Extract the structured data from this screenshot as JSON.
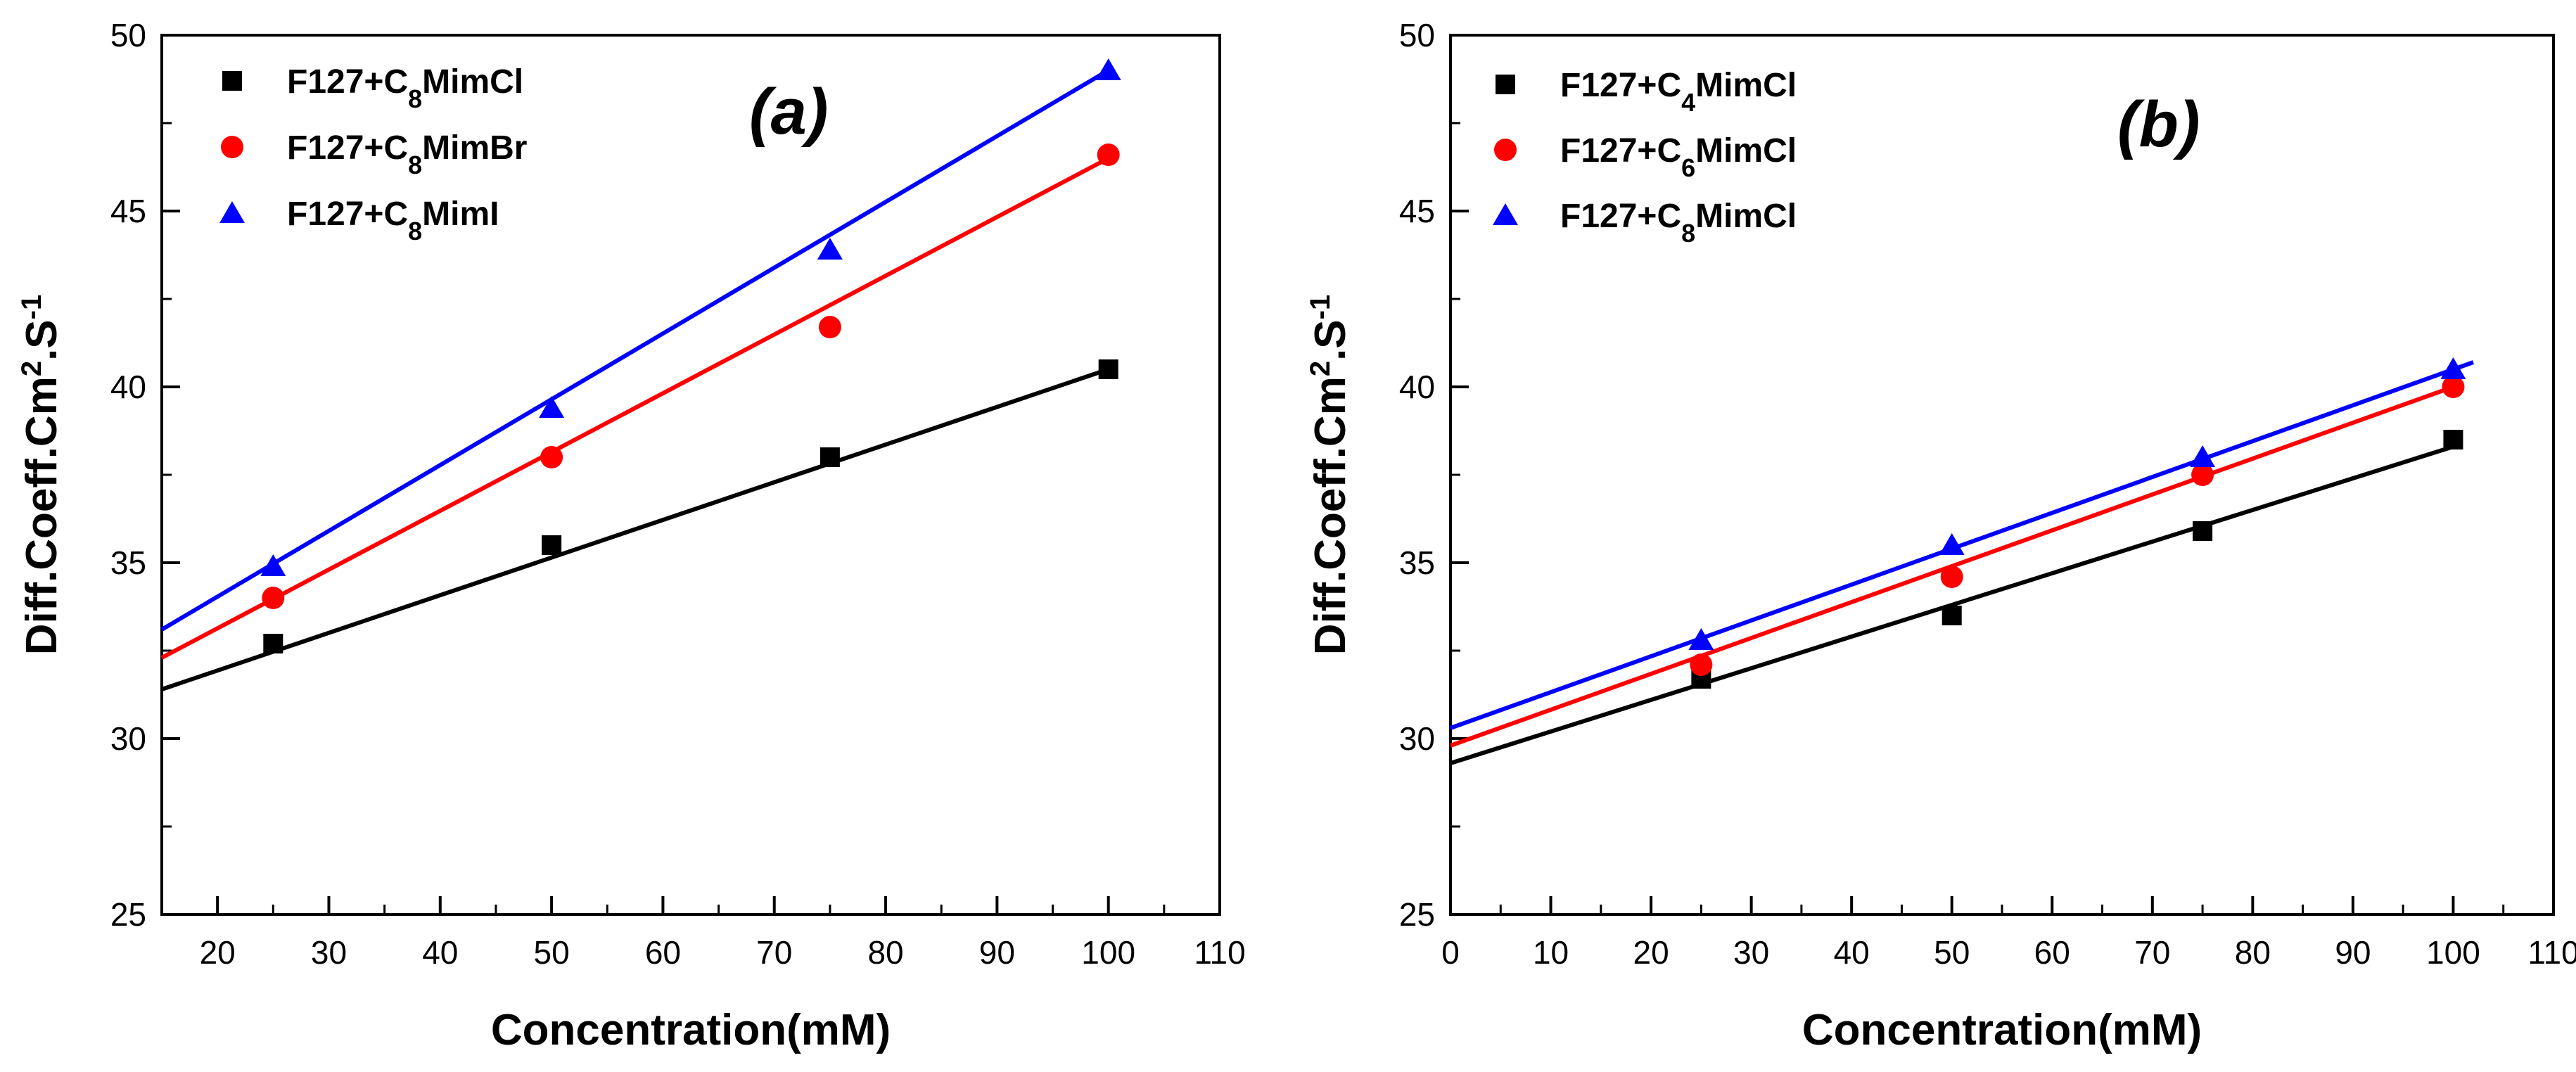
{
  "chart_data": [
    {
      "type": "scatter",
      "panel": "(a)",
      "xlabel": "Concentration(mM)",
      "ylabel": {
        "base": "Diff.Coeff.Cm",
        "sup1": "2",
        "mid": ".S",
        "sup2": "-1"
      },
      "xlim": [
        15,
        110
      ],
      "ylim": [
        25,
        50
      ],
      "xticks": [
        20,
        30,
        40,
        50,
        60,
        70,
        80,
        90,
        100,
        110
      ],
      "yticks": [
        25,
        30,
        35,
        40,
        45,
        50
      ],
      "grid": false,
      "legend_position": "top-left",
      "series": [
        {
          "name": "F127+C8MimCl",
          "label": {
            "pre": "F127+C",
            "sub": "8",
            "post": "MimCl"
          },
          "color": "#000000",
          "marker": "square",
          "x": [
            25,
            50,
            75,
            100
          ],
          "y": [
            32.7,
            35.5,
            38.0,
            40.5
          ],
          "fit": {
            "x": [
              15,
              100
            ],
            "y": [
              31.4,
              40.5
            ]
          }
        },
        {
          "name": "F127+C8MimBr",
          "label": {
            "pre": "F127+C",
            "sub": "8",
            "post": "MimBr"
          },
          "color": "#ff0000",
          "marker": "circle",
          "x": [
            25,
            50,
            75,
            100
          ],
          "y": [
            34.0,
            38.0,
            41.7,
            46.6
          ],
          "fit": {
            "x": [
              15,
              100
            ],
            "y": [
              32.3,
              46.5
            ]
          }
        },
        {
          "name": "F127+C8MimI",
          "label": {
            "pre": "F127+C",
            "sub": "8",
            "post": "MimI"
          },
          "color": "#0000ff",
          "marker": "triangle",
          "x": [
            25,
            50,
            75,
            100
          ],
          "y": [
            34.9,
            39.4,
            43.9,
            49.0
          ],
          "fit": {
            "x": [
              15,
              100
            ],
            "y": [
              33.1,
              49.0
            ]
          }
        }
      ]
    },
    {
      "type": "scatter",
      "panel": "(b)",
      "xlabel": "Concentration(mM)",
      "ylabel": {
        "base": "Diff.Coeff.Cm",
        "sup1": "2",
        "mid": ".S",
        "sup2": "-1"
      },
      "xlim": [
        0,
        110
      ],
      "ylim": [
        25,
        50
      ],
      "xticks": [
        0,
        10,
        20,
        30,
        40,
        50,
        60,
        70,
        80,
        90,
        100,
        110
      ],
      "yticks": [
        25,
        30,
        35,
        40,
        45,
        50
      ],
      "grid": false,
      "legend_position": "top-left",
      "series": [
        {
          "name": "F127+C4MimCl",
          "label": {
            "pre": "F127+C",
            "sub": "4",
            "post": "MimCl"
          },
          "color": "#000000",
          "marker": "square",
          "x": [
            25,
            50,
            75,
            100
          ],
          "y": [
            31.7,
            33.5,
            35.9,
            38.5
          ],
          "fit": {
            "x": [
              0,
              100
            ],
            "y": [
              29.3,
              38.3
            ]
          }
        },
        {
          "name": "F127+C6MimCl",
          "label": {
            "pre": "F127+C",
            "sub": "6",
            "post": "MimCl"
          },
          "color": "#ff0000",
          "marker": "circle",
          "x": [
            25,
            50,
            75,
            100
          ],
          "y": [
            32.1,
            34.6,
            37.5,
            40.0
          ],
          "fit": {
            "x": [
              0,
              100
            ],
            "y": [
              29.8,
              40.0
            ]
          }
        },
        {
          "name": "F127+C8MimCl",
          "label": {
            "pre": "F127+C",
            "sub": "8",
            "post": "MimCl"
          },
          "color": "#0000ff",
          "marker": "triangle",
          "x": [
            25,
            50,
            75,
            100
          ],
          "y": [
            32.8,
            35.5,
            38.0,
            40.5
          ],
          "fit": {
            "x": [
              0,
              102
            ],
            "y": [
              30.3,
              40.7
            ]
          }
        }
      ]
    }
  ]
}
